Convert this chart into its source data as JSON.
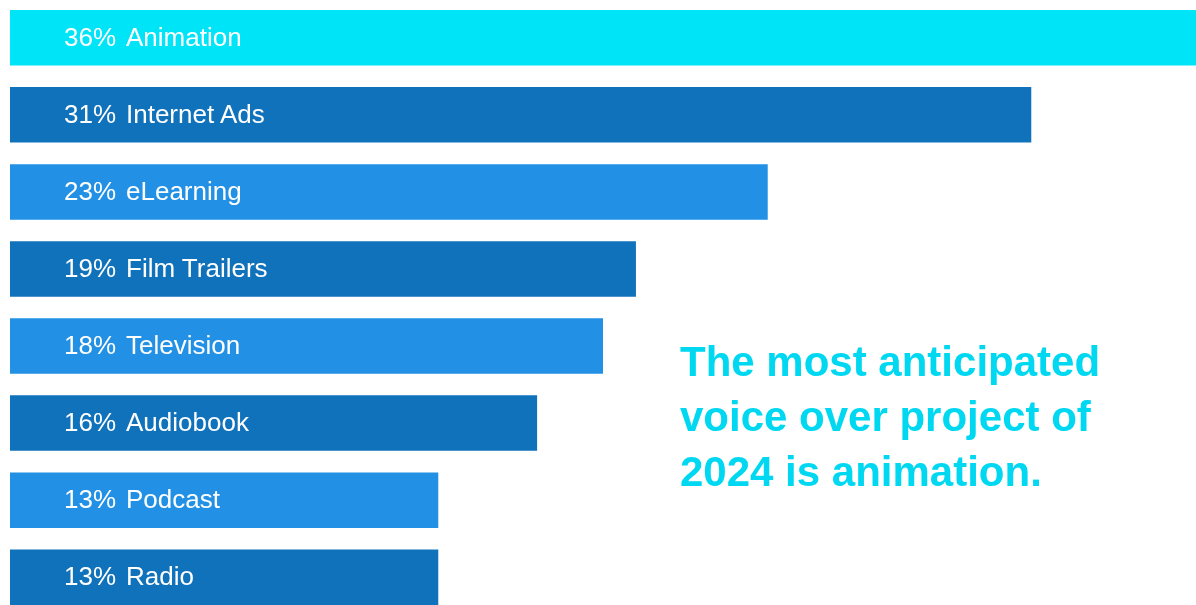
{
  "chart_data": {
    "type": "bar",
    "orientation": "horizontal",
    "categories": [
      "Animation",
      "Internet Ads",
      "eLearning",
      "Film Trailers",
      "Television",
      "Audiobook",
      "Podcast",
      "Radio"
    ],
    "values": [
      36,
      31,
      23,
      19,
      18,
      16,
      13,
      13
    ],
    "value_labels": [
      "36%",
      "31%",
      "23%",
      "19%",
      "18%",
      "16%",
      "13%",
      "13%"
    ],
    "colors": [
      "#00e4f8",
      "#1172bc",
      "#2290e4",
      "#1172bc",
      "#2290e4",
      "#1172bc",
      "#2290e4",
      "#1172bc"
    ],
    "tick_labels": false,
    "annotations": [
      "The most anticipated voice over project of 2024 is animation."
    ]
  }
}
